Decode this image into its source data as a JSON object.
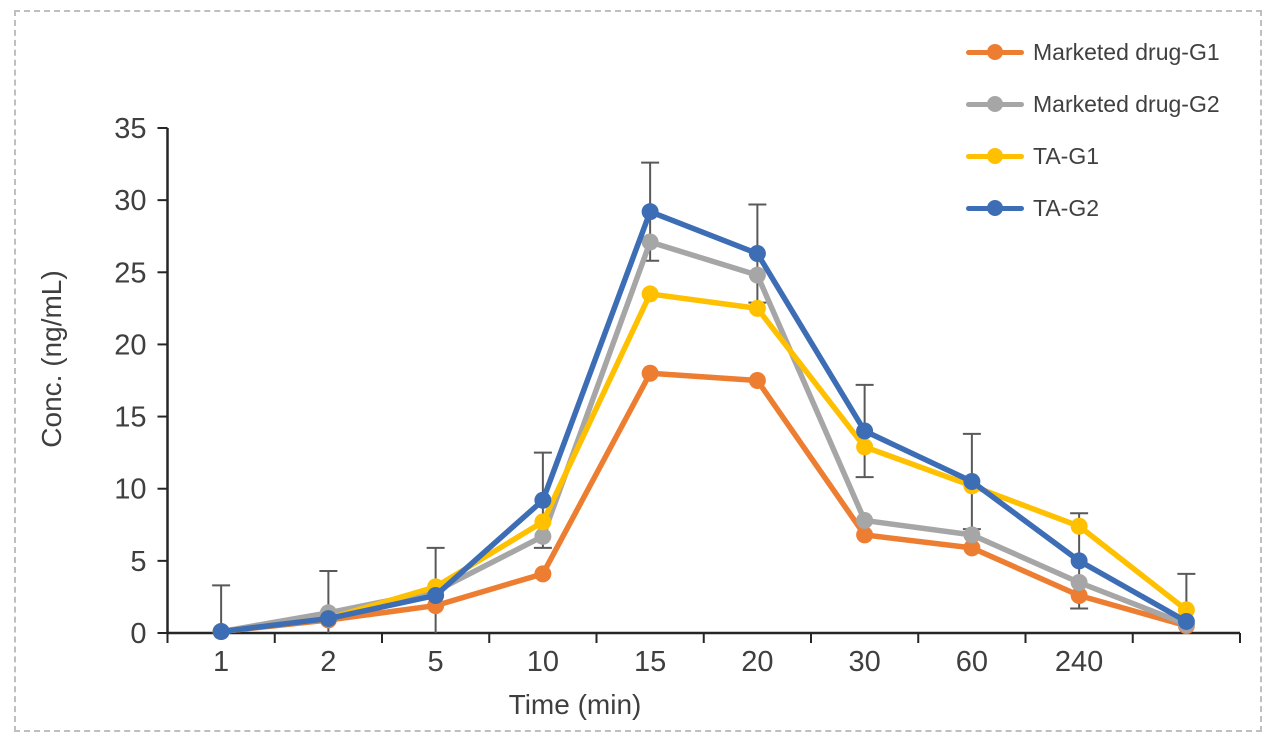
{
  "figure": {
    "background": "#ffffff",
    "frame_border_color": "#bfbfbf",
    "frame_style": "dashed"
  },
  "chart_data": {
    "type": "line",
    "title": "",
    "xlabel": "Time (min)",
    "ylabel": "Conc. (ng/mL)",
    "ylim": [
      0,
      35
    ],
    "yticks": [
      0,
      5,
      10,
      15,
      20,
      25,
      30,
      35
    ],
    "categories": [
      "1",
      "2",
      "5",
      "10",
      "15",
      "20",
      "30",
      "60",
      "240",
      ""
    ],
    "grid": false,
    "legend_position": "top-right",
    "axis_color": "#262626",
    "tick_label_color": "#3f3f3f",
    "error_bar_color": "#595959",
    "series": [
      {
        "name": "Marketed drug-G1",
        "color": "#ED7D31",
        "values": [
          0.1,
          0.9,
          1.9,
          4.1,
          18.0,
          17.5,
          6.8,
          5.9,
          2.6,
          0.5
        ]
      },
      {
        "name": "Marketed drug-G2",
        "color": "#A6A6A6",
        "values": [
          0.1,
          1.4,
          2.9,
          6.7,
          27.1,
          24.8,
          7.8,
          6.8,
          3.5,
          0.6
        ]
      },
      {
        "name": "TA-G1",
        "color": "#FFC000",
        "values": [
          0.1,
          1.0,
          3.2,
          7.7,
          23.5,
          22.5,
          12.9,
          10.2,
          7.4,
          1.6
        ]
      },
      {
        "name": "TA-G2",
        "color": "#3D6EB5",
        "values": [
          0.1,
          1.0,
          2.6,
          9.2,
          29.2,
          26.3,
          14.0,
          10.5,
          5.0,
          0.8
        ],
        "error_bars": [
          3.2,
          3.3,
          3.3,
          3.3,
          3.4,
          3.4,
          3.2,
          3.3,
          3.3,
          3.3
        ]
      }
    ]
  }
}
